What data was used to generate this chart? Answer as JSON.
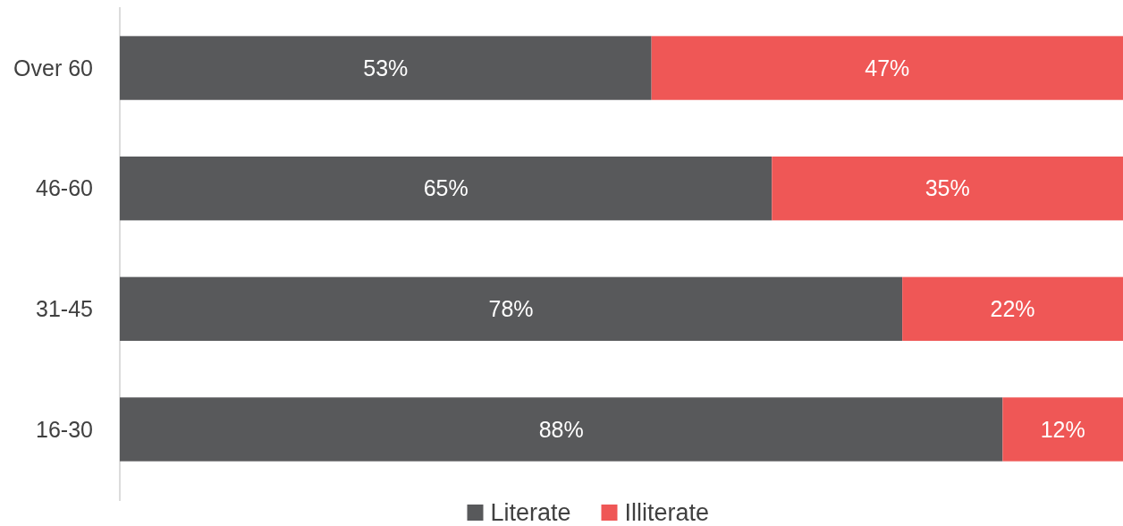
{
  "chart_data": {
    "type": "bar",
    "orientation": "horizontal",
    "stacked": true,
    "categories": [
      "Over 60",
      "46-60",
      "31-45",
      "16-30"
    ],
    "series": [
      {
        "name": "Literate",
        "color": "#58595b",
        "values": [
          53,
          65,
          78,
          88
        ],
        "value_labels": [
          "53%",
          "65%",
          "78%",
          "88%"
        ]
      },
      {
        "name": "Illiterate",
        "color": "#ef5756",
        "values": [
          47,
          35,
          22,
          12
        ],
        "value_labels": [
          "47%",
          "35%",
          "22%",
          "12%"
        ]
      }
    ],
    "xlim": [
      0,
      100
    ],
    "tick_labels": "y",
    "legend": "bottom"
  }
}
